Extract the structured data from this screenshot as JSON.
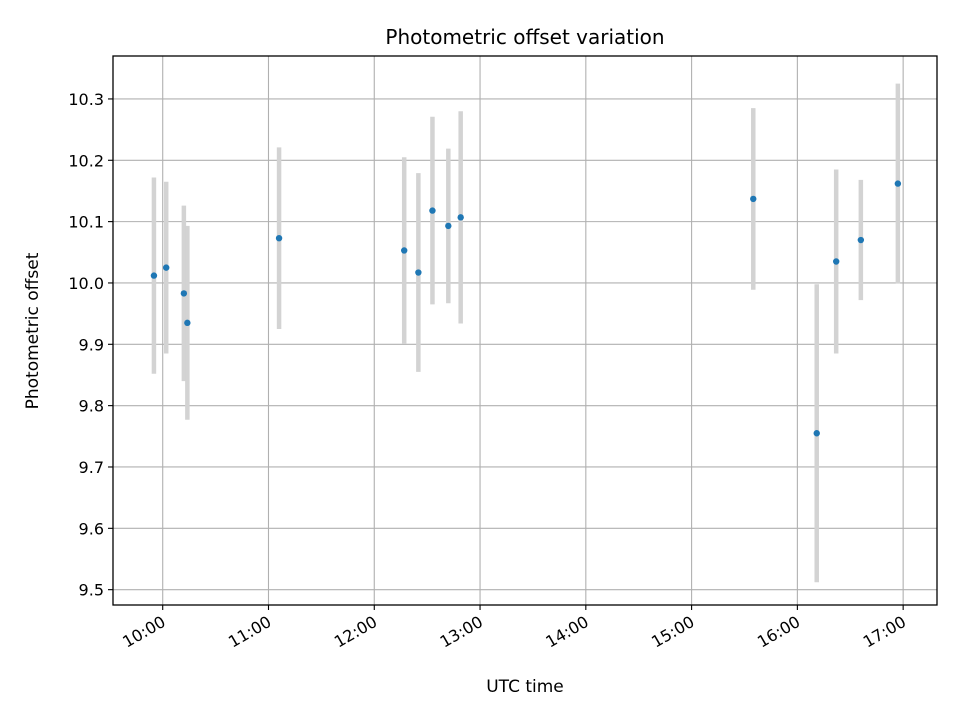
{
  "chart_data": {
    "type": "scatter",
    "title": "Photometric offset variation",
    "xlabel": "UTC time",
    "ylabel": "Photometric offset",
    "grid": true,
    "legend": "none",
    "x_unit": "hours (UTC)",
    "xlim": [
      9.53,
      17.32
    ],
    "ylim": [
      9.475,
      10.37
    ],
    "xticks": [
      10,
      11,
      12,
      13,
      14,
      15,
      16,
      17
    ],
    "xtick_labels": [
      "10:00",
      "11:00",
      "12:00",
      "13:00",
      "14:00",
      "15:00",
      "16:00",
      "17:00"
    ],
    "yticks": [
      9.5,
      9.6,
      9.7,
      9.8,
      9.9,
      10.0,
      10.1,
      10.2,
      10.3
    ],
    "ytick_labels": [
      "9.5",
      "9.6",
      "9.7",
      "9.8",
      "9.9",
      "10.0",
      "10.1",
      "10.2",
      "10.3"
    ],
    "series": [
      {
        "marker_color": "#1f77b4",
        "errorbar_color": "#d3d3d3",
        "points": [
          {
            "x": 9.917,
            "y": 10.012,
            "err": 0.16
          },
          {
            "x": 10.033,
            "y": 10.025,
            "err": 0.14
          },
          {
            "x": 10.2,
            "y": 9.983,
            "err": 0.143
          },
          {
            "x": 10.233,
            "y": 9.935,
            "err": 0.158
          },
          {
            "x": 11.1,
            "y": 10.073,
            "err": 0.148
          },
          {
            "x": 12.283,
            "y": 10.053,
            "err": 0.152
          },
          {
            "x": 12.417,
            "y": 10.017,
            "err": 0.162
          },
          {
            "x": 12.55,
            "y": 10.118,
            "err": 0.153
          },
          {
            "x": 12.7,
            "y": 10.093,
            "err": 0.126
          },
          {
            "x": 12.817,
            "y": 10.107,
            "err": 0.173
          },
          {
            "x": 15.583,
            "y": 10.137,
            "err": 0.148
          },
          {
            "x": 16.183,
            "y": 9.755,
            "err": 0.243
          },
          {
            "x": 16.367,
            "y": 10.035,
            "err": 0.15
          },
          {
            "x": 16.6,
            "y": 10.07,
            "err": 0.098
          },
          {
            "x": 16.95,
            "y": 10.162,
            "err": 0.163
          }
        ]
      }
    ]
  }
}
